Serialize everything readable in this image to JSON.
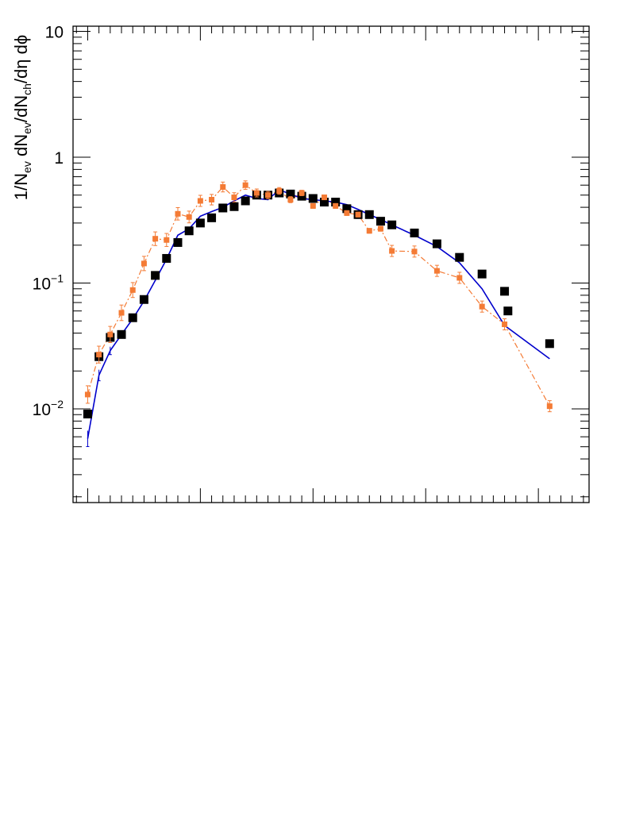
{
  "chart_data": {
    "type": "scatter",
    "title": "",
    "xlabel": "",
    "ylabel": {
      "p1": "1/N",
      "s1": "ev",
      "p2": " dN",
      "s2": "ev",
      "p3": "/dN",
      "s3": "ch",
      "p4": "/dη dϕ"
    },
    "x_scale": "linear",
    "y_scale": "log",
    "xlim": [
      -1.3,
      44.5
    ],
    "ylim": [
      0.0018,
      11
    ],
    "x_major_ticks": [
      0,
      10,
      20,
      30,
      40
    ],
    "y_tick_labels": [
      {
        "value": 10,
        "base": "10",
        "exp": ""
      },
      {
        "value": 1,
        "base": "1",
        "exp": ""
      },
      {
        "value": 0.1,
        "base": "10",
        "exp": "−1"
      },
      {
        "value": 0.01,
        "base": "10",
        "exp": "−2"
      }
    ],
    "grid": false,
    "series": [
      {
        "name": "black-squares",
        "style": "marker",
        "color": "#000000",
        "x": [
          0,
          1,
          2,
          3,
          4,
          5,
          6,
          7,
          8,
          9,
          10,
          11,
          12,
          13,
          14,
          15,
          16,
          17,
          18,
          19,
          20,
          21,
          22,
          23,
          24,
          25,
          26,
          27,
          29,
          31,
          33,
          35,
          37,
          41
        ],
        "y": [
          0.0091,
          0.026,
          0.037,
          0.039,
          0.053,
          0.074,
          0.115,
          0.157,
          0.21,
          0.26,
          0.3,
          0.33,
          0.395,
          0.405,
          0.45,
          0.5,
          0.5,
          0.52,
          0.51,
          0.49,
          0.47,
          0.44,
          0.44,
          0.39,
          0.35,
          0.35,
          0.31,
          0.29,
          0.25,
          0.205,
          0.16,
          0.118,
          0.086,
          0.033
        ]
      },
      {
        "name": "black-square-extra",
        "style": "marker",
        "color": "#000000",
        "x": [
          37.3
        ],
        "y": [
          0.06
        ]
      },
      {
        "name": "orange-dash-dot",
        "style": "marker-line",
        "color": "#f47b35",
        "x": [
          0,
          1,
          2,
          3,
          4,
          5,
          6,
          7,
          8,
          9,
          10,
          11,
          12,
          13,
          14,
          15,
          16,
          17,
          18,
          19,
          20,
          21,
          22,
          23,
          24,
          25,
          26,
          27,
          29,
          31,
          33,
          35,
          37,
          41
        ],
        "y": [
          0.013,
          0.027,
          0.039,
          0.058,
          0.088,
          0.143,
          0.225,
          0.22,
          0.355,
          0.335,
          0.45,
          0.46,
          0.58,
          0.48,
          0.6,
          0.52,
          0.5,
          0.54,
          0.46,
          0.52,
          0.41,
          0.48,
          0.41,
          0.36,
          0.35,
          0.26,
          0.27,
          0.18,
          0.178,
          0.125,
          0.11,
          0.065,
          0.047,
          0.0105
        ]
      },
      {
        "name": "blue-line",
        "style": "line",
        "color": "#0000cc",
        "x": [
          0,
          1,
          2,
          3,
          4,
          5,
          6,
          7,
          8,
          9,
          10,
          11,
          12,
          13,
          14,
          15,
          16,
          17,
          18,
          19,
          20,
          21,
          22,
          23,
          24,
          25,
          26,
          27,
          29,
          31,
          33,
          35,
          37,
          41
        ],
        "y": [
          0.0058,
          0.0185,
          0.029,
          0.039,
          0.052,
          0.072,
          0.105,
          0.155,
          0.24,
          0.27,
          0.34,
          0.37,
          0.4,
          0.45,
          0.5,
          0.47,
          0.46,
          0.55,
          0.51,
          0.47,
          0.46,
          0.45,
          0.44,
          0.42,
          0.385,
          0.35,
          0.32,
          0.29,
          0.24,
          0.195,
          0.145,
          0.09,
          0.046,
          0.025
        ]
      }
    ]
  }
}
